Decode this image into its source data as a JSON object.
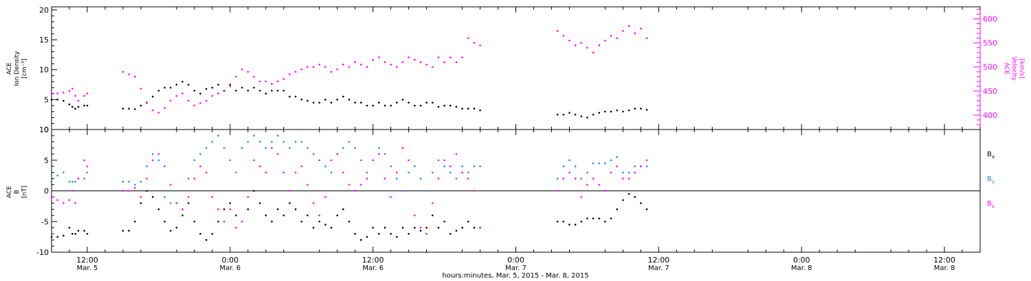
{
  "chart_data": [
    {
      "type": "scatter",
      "panel": "density-velocity",
      "ylabel_lines": [
        "ACE",
        "Ion Density",
        "[cm⁻³]"
      ],
      "ylim": [
        0,
        20.5
      ],
      "yticks": [
        0,
        5,
        10,
        15,
        20
      ],
      "y2label_lines": [
        "ACE",
        "Velocity",
        "[km/s]"
      ],
      "y2lim": [
        370,
        625
      ],
      "y2ticks": [
        400,
        450,
        500,
        550,
        600
      ],
      "colors": {
        "density": "#000000",
        "velocity": "#ff00ff"
      },
      "series": [
        {
          "axis": "left",
          "color": "#000000",
          "x": [
            0,
            1,
            2,
            3,
            3.5,
            4,
            4.5,
            5.5,
            6,
            12,
            13,
            14,
            15,
            16,
            17,
            18,
            19,
            20,
            21,
            22,
            23,
            24,
            25,
            26,
            27,
            28,
            29,
            30,
            31,
            32,
            33,
            34,
            35,
            36,
            37,
            38,
            39,
            40,
            41,
            42,
            43,
            44,
            45,
            46,
            47,
            48,
            49,
            50,
            51,
            52,
            53,
            54,
            55,
            56,
            57,
            58,
            59,
            60,
            61,
            62,
            63,
            64,
            65,
            66,
            67,
            68,
            69,
            70,
            71,
            72,
            85,
            86,
            87,
            88,
            89,
            90,
            91,
            92,
            93,
            94,
            95,
            96,
            97,
            98,
            99,
            100
          ],
          "y": [
            5,
            5,
            4.8,
            4.2,
            3.8,
            3.5,
            3.8,
            4,
            4,
            3.5,
            3.5,
            3.4,
            4,
            4.5,
            5.5,
            6.5,
            7,
            7,
            7.5,
            8,
            7.5,
            6.5,
            6,
            6.8,
            7,
            7.5,
            6.5,
            7.5,
            6.5,
            7,
            6.5,
            7,
            6.5,
            6,
            6.5,
            6.5,
            6.5,
            5.5,
            5.5,
            5,
            4.8,
            4.5,
            4.5,
            5,
            4.5,
            5,
            5.5,
            5,
            4.5,
            4.5,
            4,
            4,
            4.5,
            4,
            4,
            4.5,
            5,
            4.5,
            4,
            4,
            4.5,
            4.5,
            3.8,
            4,
            4,
            3.8,
            3.5,
            3.5,
            3.5,
            3.2,
            2.5,
            2.5,
            2.8,
            2.5,
            2.2,
            2,
            2.5,
            2.8,
            3,
            3,
            3.2,
            3,
            3.2,
            3.5,
            3.5,
            3.3
          ]
        },
        {
          "axis": "right",
          "color": "#ff00ff",
          "x": [
            0,
            1,
            2,
            3,
            3.5,
            4,
            4.5,
            5.5,
            6,
            12,
            13,
            14,
            15,
            16,
            17,
            18,
            19,
            20,
            21,
            22,
            23,
            24,
            25,
            26,
            27,
            28,
            29,
            30,
            31,
            32,
            33,
            34,
            35,
            36,
            37,
            38,
            39,
            40,
            41,
            42,
            43,
            44,
            45,
            46,
            47,
            48,
            49,
            50,
            51,
            52,
            53,
            54,
            55,
            56,
            57,
            58,
            59,
            60,
            61,
            62,
            63,
            64,
            65,
            66,
            67,
            68,
            69,
            70,
            71,
            72,
            85,
            86,
            87,
            88,
            89,
            90,
            91,
            92,
            93,
            94,
            95,
            96,
            97,
            98,
            99,
            100
          ],
          "y": [
            445,
            445,
            447,
            450,
            455,
            440,
            430,
            440,
            445,
            490,
            485,
            480,
            455,
            425,
            410,
            405,
            415,
            430,
            440,
            445,
            430,
            420,
            425,
            430,
            440,
            445,
            450,
            460,
            480,
            495,
            490,
            480,
            470,
            470,
            465,
            470,
            475,
            485,
            490,
            495,
            500,
            500,
            505,
            500,
            490,
            495,
            505,
            500,
            510,
            505,
            500,
            515,
            520,
            510,
            505,
            500,
            510,
            520,
            515,
            510,
            505,
            500,
            520,
            510,
            520,
            510,
            520,
            560,
            550,
            545,
            575,
            565,
            555,
            545,
            550,
            540,
            530,
            545,
            555,
            565,
            560,
            575,
            585,
            570,
            580,
            560
          ]
        }
      ]
    },
    {
      "type": "scatter",
      "panel": "magnetic-field",
      "ylabel_lines": [
        "ACE",
        "B",
        "[nT]"
      ],
      "ylim": [
        -10,
        10
      ],
      "yticks": [
        -10,
        -5,
        0,
        5,
        10
      ],
      "zero_line": true,
      "legend": [
        {
          "label": "B",
          "subscript": "x",
          "color": "#000000"
        },
        {
          "label": "B",
          "subscript": "y",
          "color": "#1e88e5"
        },
        {
          "label": "B",
          "subscript": "z",
          "color": "#ff00ff"
        }
      ],
      "series": [
        {
          "color": "#000000",
          "x": [
            0,
            1,
            2,
            3,
            3.5,
            4,
            4.5,
            5.5,
            6,
            12,
            13,
            14,
            15,
            16,
            17,
            18,
            19,
            20,
            21,
            22,
            23,
            24,
            25,
            26,
            27,
            28,
            29,
            30,
            31,
            32,
            33,
            34,
            35,
            36,
            37,
            38,
            39,
            40,
            41,
            42,
            43,
            44,
            45,
            46,
            47,
            48,
            49,
            50,
            51,
            52,
            53,
            54,
            55,
            56,
            57,
            58,
            59,
            60,
            61,
            62,
            63,
            64,
            65,
            66,
            67,
            68,
            69,
            70,
            71,
            72,
            85,
            86,
            87,
            88,
            89,
            90,
            91,
            92,
            93,
            94,
            95,
            96,
            97,
            98,
            99,
            100
          ],
          "y": [
            -7.5,
            -7.5,
            -7.3,
            -6,
            -7,
            -7,
            -6.5,
            -6.5,
            -7,
            -6.5,
            -6.5,
            -5,
            -2,
            0,
            -1,
            -3,
            -5,
            -6.5,
            -6,
            -4,
            -2,
            -5,
            -7,
            -8,
            -7,
            -5,
            -3,
            -2,
            -4,
            -5,
            -3,
            0,
            -2,
            -4,
            -5,
            -3,
            -4,
            -2,
            -3,
            -5,
            -4,
            -6,
            -5,
            -5.5,
            -6,
            -4,
            -3,
            -5,
            -7,
            -8,
            -7.5,
            -6,
            -7,
            -6,
            -7,
            -7.5,
            -6,
            -7,
            -6,
            -6.5,
            -6,
            -4,
            -6,
            -5,
            -7,
            -6.5,
            -6,
            -5,
            -6,
            -6,
            -5,
            -5,
            -5.5,
            -5.5,
            -5,
            -4.5,
            -4.5,
            -4.5,
            -5,
            -4.5,
            -3,
            -1.5,
            -0.5,
            -1,
            -2,
            -3
          ]
        },
        {
          "color": "#1e88e5",
          "x": [
            0,
            1,
            2,
            3,
            3.5,
            4,
            4.5,
            5.5,
            6,
            12,
            13,
            14,
            15,
            16,
            17,
            18,
            19,
            20,
            21,
            22,
            23,
            24,
            25,
            26,
            27,
            28,
            29,
            30,
            31,
            32,
            33,
            34,
            35,
            36,
            37,
            38,
            39,
            40,
            41,
            42,
            43,
            44,
            45,
            46,
            47,
            48,
            49,
            50,
            51,
            52,
            53,
            54,
            55,
            56,
            57,
            58,
            59,
            60,
            61,
            62,
            63,
            64,
            65,
            66,
            67,
            68,
            69,
            70,
            71,
            72,
            85,
            86,
            87,
            88,
            89,
            90,
            91,
            92,
            93,
            94,
            95,
            96,
            97,
            98,
            99,
            100
          ],
          "y": [
            1.5,
            2.5,
            3,
            1.5,
            1.5,
            1.5,
            2,
            2,
            3,
            1.5,
            1.5,
            1,
            1.5,
            4,
            6,
            5,
            -1,
            -2,
            -2,
            -3,
            2,
            5,
            6,
            7,
            8,
            9,
            7,
            5,
            3,
            7,
            8,
            9,
            8,
            7,
            8,
            9,
            8,
            7,
            8,
            8,
            7,
            6,
            5,
            4,
            3,
            6,
            7,
            8,
            7,
            5,
            3,
            5,
            7,
            6,
            4,
            2,
            0,
            3,
            4,
            2,
            0,
            3,
            5,
            4,
            3,
            2,
            4,
            3,
            4,
            4,
            2,
            4,
            5,
            4,
            2,
            3,
            4.5,
            4.5,
            4.5,
            5,
            5.5,
            3,
            3,
            4,
            4,
            4
          ]
        },
        {
          "color": "#ff00ff",
          "x": [
            0,
            1,
            2,
            3,
            3.5,
            4,
            4.5,
            5.5,
            6,
            12,
            13,
            14,
            15,
            16,
            17,
            18,
            19,
            20,
            21,
            22,
            23,
            24,
            25,
            26,
            27,
            28,
            29,
            30,
            31,
            32,
            33,
            34,
            35,
            36,
            37,
            38,
            39,
            40,
            41,
            42,
            43,
            44,
            45,
            46,
            47,
            48,
            49,
            50,
            51,
            52,
            53,
            54,
            55,
            56,
            57,
            58,
            59,
            60,
            61,
            62,
            63,
            64,
            65,
            66,
            67,
            68,
            69,
            70,
            71,
            72,
            85,
            86,
            87,
            88,
            89,
            90,
            91,
            92,
            93,
            94,
            95,
            96,
            97,
            98,
            99,
            100
          ],
          "y": [
            -1,
            -1.5,
            -2,
            -1.5,
            0,
            -2,
            2,
            5,
            4,
            0,
            0,
            0.5,
            -1,
            2,
            5,
            6,
            4,
            1,
            -2,
            -3,
            -1,
            2,
            4,
            3,
            -1,
            -3,
            -5,
            -3,
            -6,
            -5,
            -1,
            5,
            4,
            3,
            7,
            6,
            3,
            0,
            3,
            4,
            1,
            -2,
            -4,
            -1,
            5,
            6,
            3,
            1,
            0,
            1,
            2,
            5,
            6,
            2,
            -1,
            3,
            7,
            5,
            -4,
            -6,
            -7,
            -2,
            2,
            5,
            4,
            6,
            3,
            2,
            0,
            -6,
            0,
            2,
            3,
            2,
            -1,
            1,
            2,
            1,
            0,
            3,
            4,
            2,
            2,
            3,
            4,
            5
          ]
        }
      ]
    }
  ],
  "x_axis": {
    "ticks": [
      {
        "x": 6,
        "time": "12:00",
        "date": "Mar. 5"
      },
      {
        "x": 30,
        "time": "0:00",
        "date": "Mar. 6"
      },
      {
        "x": 54,
        "time": "12:00",
        "date": "Mar. 6"
      },
      {
        "x": 78,
        "time": "0:00",
        "date": "Mar. 7"
      },
      {
        "x": 102,
        "time": "12:00",
        "date": "Mar. 7"
      },
      {
        "x": 126,
        "time": "0:00",
        "date": "Mar. 8"
      },
      {
        "x": 150,
        "time": "12:00",
        "date": "Mar. 8"
      }
    ],
    "xlim": [
      0,
      156
    ],
    "xlabel": "hours:minutes, Mar. 5, 2015 - Mar. 8, 2015"
  }
}
